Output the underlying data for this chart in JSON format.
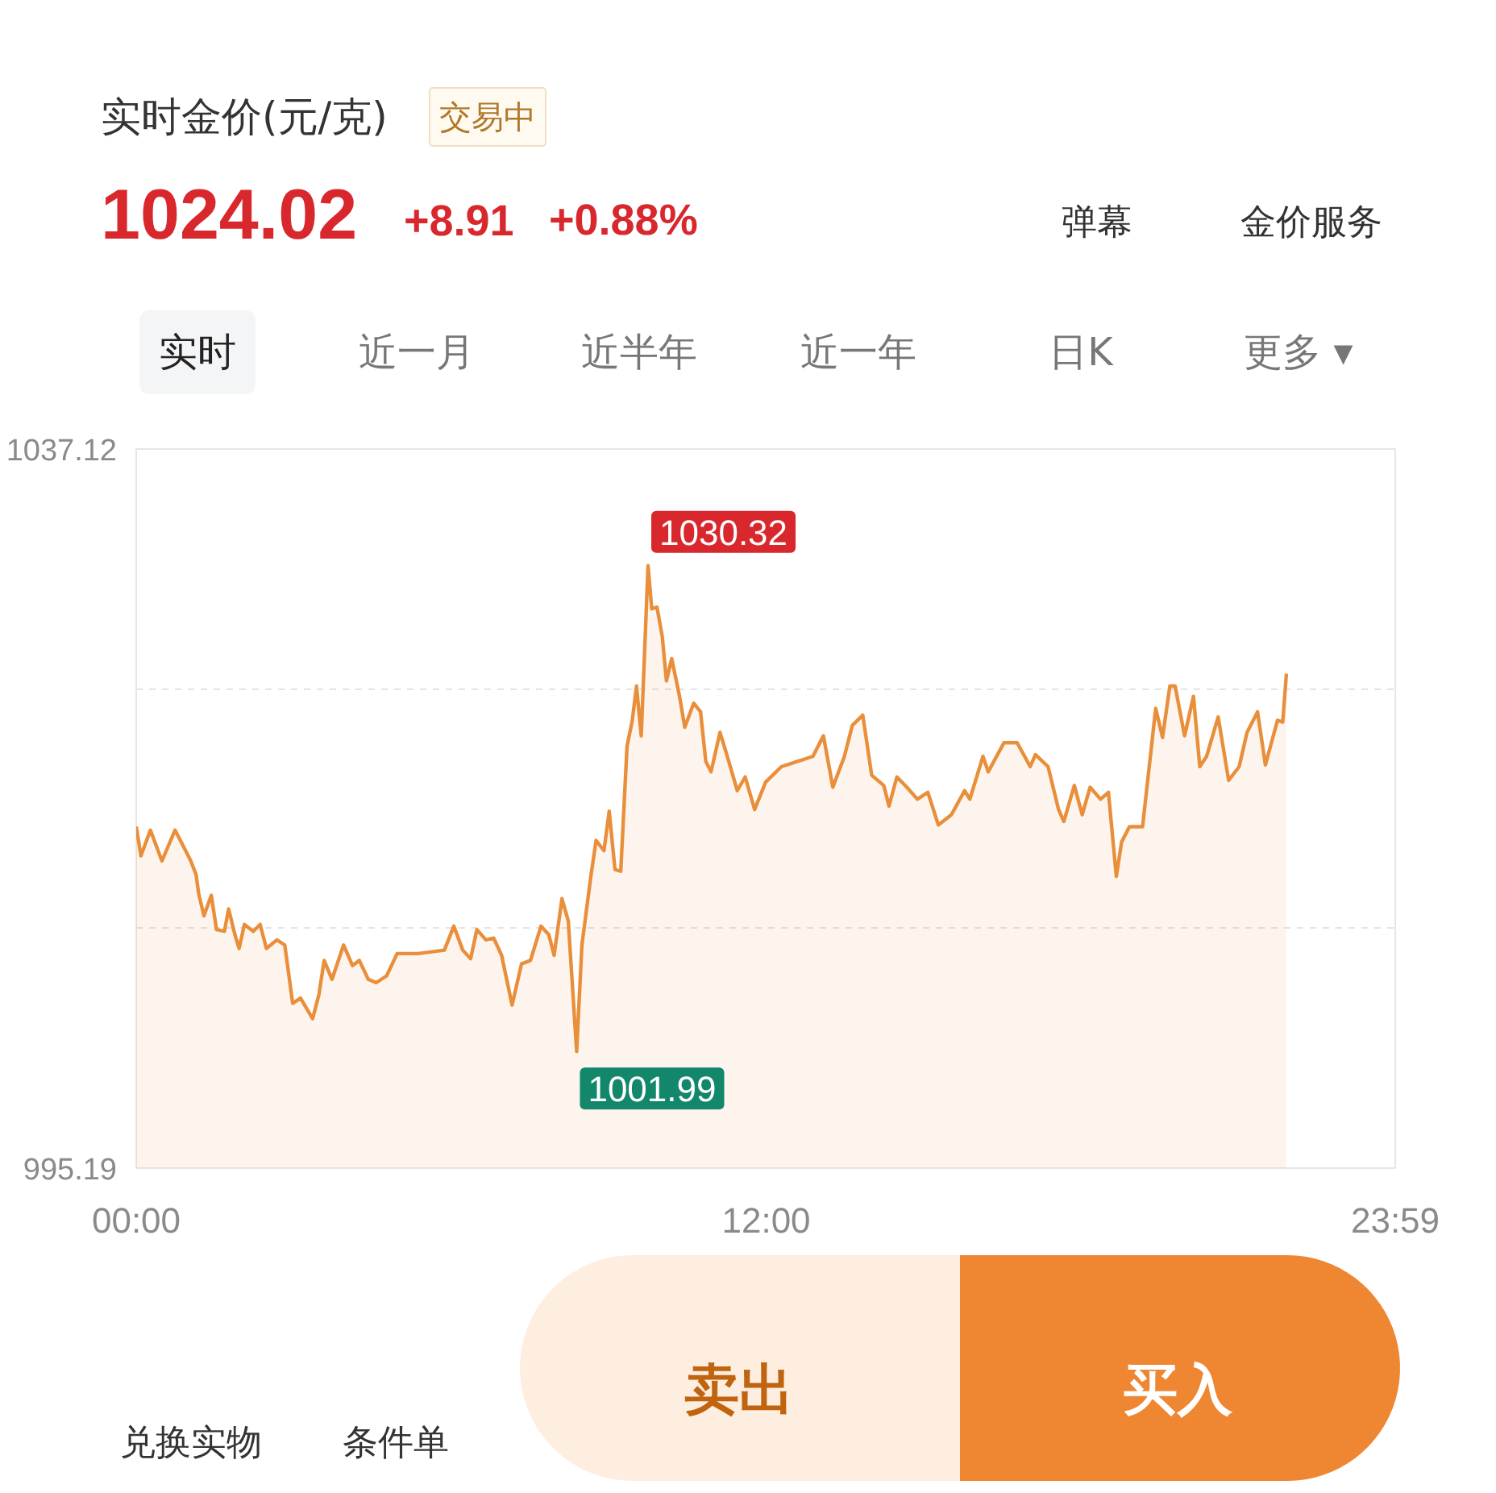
{
  "chart_data": {
    "type": "area",
    "title": "实时金价(元/克)",
    "annotations": [
      "交易中",
      "1024.02",
      "+8.91",
      "+0.88%",
      "弹幕",
      "金价服务",
      "实时",
      "近一月",
      "近半年",
      "近一年",
      "日K",
      "更多 ▾",
      "兑换实物",
      "条件单",
      "卖出",
      "买入",
      {
        "text": "1030.32",
        "x": 9.75,
        "y": 1030.32
      },
      {
        "text": "1001.99",
        "x": 8.39,
        "y": 1001.99
      }
    ],
    "x": [
      0,
      0.09,
      0.27,
      0.49,
      0.74,
      0.89,
      1.04,
      1.14,
      1.19,
      1.29,
      1.43,
      1.53,
      1.68,
      1.76,
      1.88,
      1.96,
      2.06,
      2.23,
      2.36,
      2.48,
      2.68,
      2.83,
      2.98,
      3.13,
      3.36,
      3.48,
      3.58,
      3.73,
      3.95,
      4.12,
      4.25,
      4.42,
      4.57,
      4.77,
      4.97,
      5.37,
      5.87,
      6.05,
      6.22,
      6.37,
      6.49,
      6.66,
      6.81,
      6.96,
      7.16,
      7.34,
      7.51,
      7.71,
      7.86,
      7.96,
      8.11,
      8.23,
      8.39,
      8.49,
      8.66,
      8.76,
      8.91,
      9.01,
      9.12,
      9.23,
      9.35,
      9.45,
      9.53,
      9.62,
      9.75,
      9.82,
      9.92,
      10.02,
      10.1,
      10.2,
      10.35,
      10.45,
      10.62,
      10.75,
      10.85,
      10.95,
      11.12,
      11.25,
      11.45,
      11.6,
      11.78,
      11.99,
      12.29,
      12.59,
      12.89,
      13.09,
      13.27,
      13.49,
      13.64,
      13.84,
      14.01,
      14.24,
      14.34,
      14.49,
      14.68,
      14.88,
      15.08,
      15.28,
      15.53,
      15.78,
      15.88,
      16.13,
      16.23,
      16.53,
      16.78,
      17.03,
      17.13,
      17.37,
      17.57,
      17.67,
      17.87,
      18.02,
      18.17,
      18.37,
      18.52,
      18.67,
      18.77,
      18.92,
      19.17,
      19.42,
      19.55,
      19.69,
      19.79,
      19.97,
      20.14,
      20.26,
      20.39,
      20.61,
      20.81,
      21.01,
      21.16,
      21.36,
      21.51,
      21.74,
      21.84,
      21.91
    ],
    "series": [
      {
        "color": "#e98f3b",
        "values": [
          1015.1,
          1013.4,
          1014.9,
          1013.1,
          1014.9,
          1014.0,
          1013.1,
          1012.3,
          1011.2,
          1009.9,
          1011.1,
          1009.1,
          1009.0,
          1010.3,
          1008.8,
          1008.0,
          1009.4,
          1009.0,
          1009.4,
          1008.0,
          1008.5,
          1008.2,
          1004.8,
          1005.1,
          1003.9,
          1005.3,
          1007.3,
          1006.2,
          1008.2,
          1007.0,
          1007.3,
          1006.2,
          1006.0,
          1006.4,
          1007.7,
          1007.7,
          1007.9,
          1009.3,
          1007.9,
          1007.4,
          1009.1,
          1008.5,
          1008.6,
          1007.6,
          1004.7,
          1007.1,
          1007.3,
          1009.3,
          1008.8,
          1007.6,
          1010.9,
          1009.6,
          1001.99,
          1008.2,
          1012.2,
          1014.3,
          1013.7,
          1016.0,
          1012.6,
          1012.5,
          1019.8,
          1021.3,
          1023.3,
          1020.4,
          1030.32,
          1027.8,
          1027.9,
          1026.2,
          1023.6,
          1024.9,
          1022.7,
          1020.9,
          1022.3,
          1021.8,
          1018.9,
          1018.3,
          1020.6,
          1019.3,
          1017.2,
          1018.0,
          1016.1,
          1017.7,
          1018.6,
          1018.9,
          1019.2,
          1020.4,
          1017.4,
          1019.2,
          1021.0,
          1021.6,
          1018.1,
          1017.5,
          1016.3,
          1018.0,
          1017.4,
          1016.7,
          1017.1,
          1015.2,
          1015.8,
          1017.2,
          1016.7,
          1019.2,
          1018.3,
          1020.0,
          1020.0,
          1018.6,
          1019.3,
          1018.6,
          1016.1,
          1015.4,
          1017.5,
          1015.8,
          1017.4,
          1016.7,
          1017.1,
          1012.2,
          1014.2,
          1015.1,
          1015.1,
          1022.0,
          1020.3,
          1023.3,
          1023.3,
          1020.4,
          1022.7,
          1018.6,
          1019.2,
          1021.5,
          1017.8,
          1018.6,
          1020.6,
          1021.8,
          1018.7,
          1021.3,
          1021.2,
          1024.02
        ]
      }
    ],
    "xlim": [
      0,
      23.9833
    ],
    "xticks": [
      {
        "value": 0,
        "label": "00:00"
      },
      {
        "value": 12,
        "label": "12:00"
      },
      {
        "value": 23.9833,
        "label": "23:59"
      }
    ],
    "ylim": [
      995.19,
      1037.12
    ],
    "yticks": [
      995.19,
      {
        "value": 1009.17,
        "label": null
      },
      {
        "value": 1023.14,
        "label": null
      },
      1037.12
    ],
    "grid": "y"
  }
}
